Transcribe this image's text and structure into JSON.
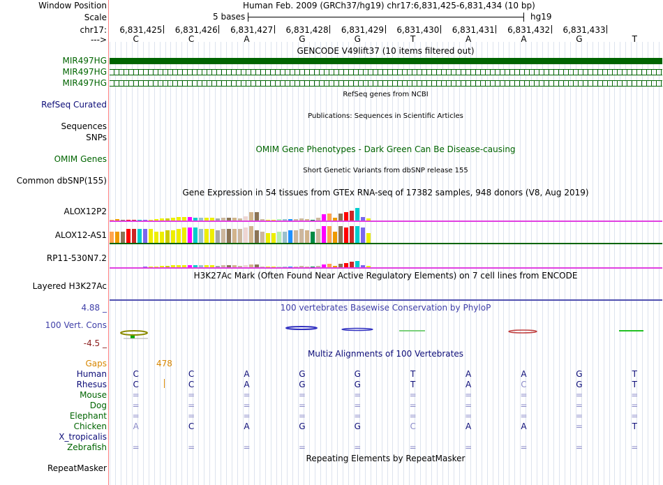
{
  "colors": {
    "gene_green": "#006400",
    "refseq_blue": "#0c0c78",
    "conservation_blue": "#3f3fa8",
    "multiz_navy": "#0c0c78",
    "gaps_orange": "#d78600",
    "guide_line": "#ff8080",
    "magenta_baseline": "#e040e0",
    "h3k27ac_line": "#5050b0"
  },
  "header": {
    "window_position_label": "Window Position",
    "window_position_value": "Human Feb. 2009 (GRCh37/hg19)   chr17:6,831,425-6,831,434 (10 bp)",
    "scale_label": "Scale",
    "scale_value": "5 bases",
    "scale_db": "hg19",
    "chrom_label": "chr17:",
    "arrow_label": "--->",
    "positions": [
      "6,831,425",
      "6,831,426",
      "6,831,427",
      "6,831,428",
      "6,831,429",
      "6,831,430",
      "6,831,431",
      "6,831,432",
      "6,831,433"
    ],
    "bases": [
      "C",
      "C",
      "A",
      "G",
      "G",
      "T",
      "A",
      "A",
      "G",
      "T"
    ]
  },
  "tracks": {
    "gencode_title": "GENCODE V49lift37 (10 items filtered out)",
    "gencode_genes": [
      "MIR497HG",
      "MIR497HG",
      "MIR497HG"
    ],
    "refseq_title": "RefSeq genes from NCBI",
    "refseq_label": "RefSeq Curated",
    "publications_title": "Publications: Sequences in Scientific Articles",
    "publications_labels": [
      "Sequences",
      "SNPs"
    ],
    "omim_title": "OMIM Gene Phenotypes - Dark Green Can Be Disease-causing",
    "omim_label": "OMIM Genes",
    "dbsnp_title": "Short Genetic Variants from dbSNP release 155",
    "dbsnp_label": "Common dbSNP(155)",
    "gtex_title": "Gene Expression in 54 tissues from GTEx RNA-seq of 17382 samples, 948 donors (V8, Aug 2019)",
    "gtex_genes": [
      "ALOX12P2",
      "ALOX12-AS1",
      "RP11-530N7.2"
    ],
    "h3k27ac_title": "H3K27Ac Mark (Often Found Near Active Regulatory Elements) on 7 cell lines from ENCODE",
    "h3k27ac_label": "Layered H3K27Ac",
    "phylop_title": "100 vertebrates Basewise Conservation by PhyloP",
    "phylop_label": "100 Vert. Cons",
    "phylop_max": "4.88 _",
    "phylop_min": "-4.5 _",
    "multiz_title": "Multiz Alignments of 100 Vertebrates",
    "gaps_label": "Gaps",
    "gaps_value": "478",
    "repeatmasker_title": "Repeating Elements by RepeatMasker",
    "repeatmasker_label": "RepeatMasker"
  },
  "multiz": [
    {
      "species": "Human",
      "bases": [
        "C",
        "C",
        "A",
        "G",
        "G",
        "T",
        "A",
        "A",
        "G",
        "T"
      ]
    },
    {
      "species": "Rhesus",
      "bases": [
        "C",
        "C",
        "A",
        "G",
        "G",
        "T",
        "A",
        "C",
        "G",
        "T"
      ]
    },
    {
      "species": "Mouse",
      "bases": [
        "=",
        "=",
        "=",
        "=",
        "=",
        "=",
        "=",
        "=",
        "=",
        "="
      ]
    },
    {
      "species": "Dog",
      "bases": [
        "=",
        "=",
        "=",
        "=",
        "=",
        "=",
        "=",
        "=",
        "=",
        "="
      ]
    },
    {
      "species": "Elephant",
      "bases": [
        "=",
        "=",
        "=",
        "=",
        "=",
        "=",
        "=",
        "=",
        "=",
        "="
      ]
    },
    {
      "species": "Chicken",
      "bases": [
        "A",
        "C",
        "A",
        "G",
        "G",
        "C",
        "A",
        "A",
        "=",
        "T"
      ]
    },
    {
      "species": "X_tropicalis",
      "bases": [
        "",
        "",
        "",
        "",
        "",
        "",
        "",
        "",
        "",
        ""
      ]
    },
    {
      "species": "Zebrafish",
      "bases": [
        "=",
        "=",
        "=",
        "=",
        "=",
        "=",
        "=",
        "=",
        "=",
        "="
      ]
    }
  ]
}
